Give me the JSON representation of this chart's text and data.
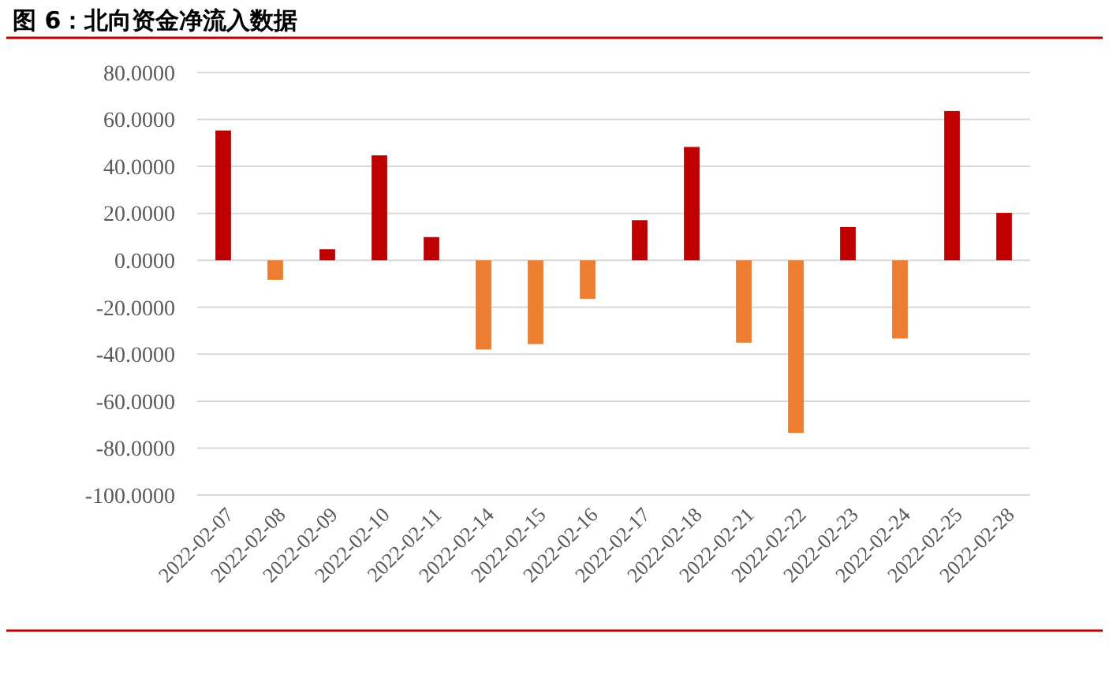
{
  "chart_data": {
    "type": "bar",
    "title": "图 6：北向资金净流入数据",
    "categories": [
      "2022-02-07",
      "2022-02-08",
      "2022-02-09",
      "2022-02-10",
      "2022-02-11",
      "2022-02-14",
      "2022-02-15",
      "2022-02-16",
      "2022-02-17",
      "2022-02-18",
      "2022-02-21",
      "2022-02-22",
      "2022-02-23",
      "2022-02-24",
      "2022-02-25",
      "2022-02-28"
    ],
    "values": [
      55.3,
      -8.3,
      4.7,
      44.7,
      9.9,
      -38,
      -35.7,
      -16.4,
      17.1,
      48.3,
      -35.1,
      -73.5,
      14.2,
      -33.3,
      63.6,
      20.2
    ],
    "colors": [
      "#c00000",
      "#ed7d31",
      "#c00000",
      "#c00000",
      "#c00000",
      "#ed7d31",
      "#ed7d31",
      "#ed7d31",
      "#c00000",
      "#c00000",
      "#ed7d31",
      "#ed7d31",
      "#c00000",
      "#ed7d31",
      "#c00000",
      "#c00000"
    ],
    "ylim": [
      -100,
      80
    ],
    "yticks": [
      {
        "value": -100,
        "label": "-100.0000"
      },
      {
        "value": -80,
        "label": "-80.0000"
      },
      {
        "value": -60,
        "label": "-60.0000"
      },
      {
        "value": -40,
        "label": "-40.0000"
      },
      {
        "value": -20,
        "label": "-20.0000"
      },
      {
        "value": 0,
        "label": "0.0000"
      },
      {
        "value": 20,
        "label": "20.0000"
      },
      {
        "value": 40,
        "label": "40.0000"
      },
      {
        "value": 60,
        "label": "60.0000"
      },
      {
        "value": 80,
        "label": "80.0000"
      }
    ],
    "grid": "y"
  }
}
